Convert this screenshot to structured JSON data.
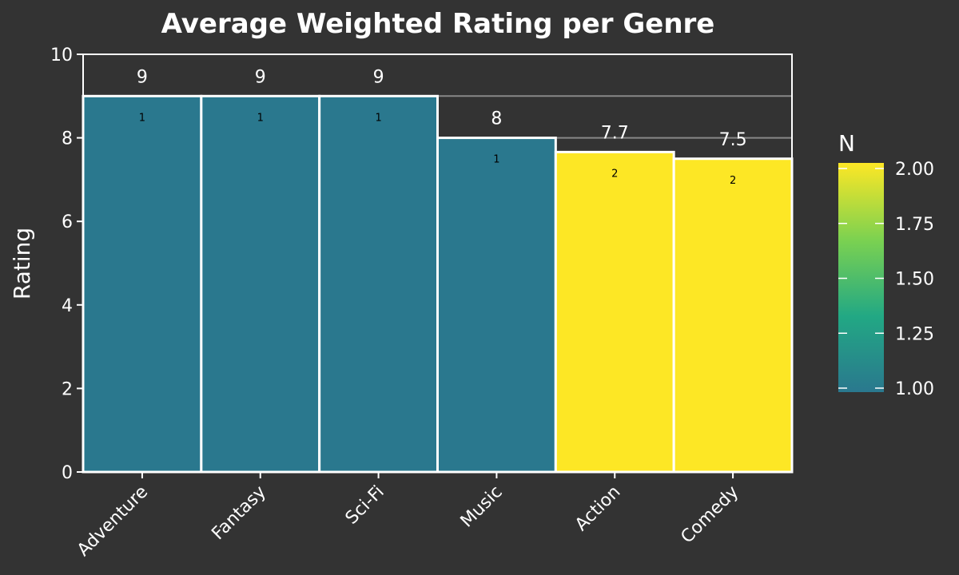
{
  "chart_data": {
    "type": "bar",
    "title": "Average Weighted Rating per Genre",
    "xlabel": "",
    "ylabel": "Rating",
    "ylim": [
      0,
      10
    ],
    "yticks": [
      0,
      2,
      4,
      6,
      8,
      10
    ],
    "categories": [
      "Adventure",
      "Fantasy",
      "Sci-Fi",
      "Music",
      "Action",
      "Comedy"
    ],
    "values": [
      9,
      9,
      9,
      8,
      7.66,
      7.5
    ],
    "value_labels": [
      "9",
      "9",
      "9",
      "8",
      "7.7",
      "7.5"
    ],
    "counts": [
      1,
      1,
      1,
      1,
      2,
      2
    ],
    "count_labels": [
      "1",
      "1",
      "1",
      "1",
      "2",
      "2"
    ],
    "reference_lines": [
      9,
      8
    ],
    "legend": {
      "title": "N",
      "position": "right",
      "range": [
        1.0,
        2.0
      ],
      "ticks": [
        1.0,
        1.25,
        1.5,
        1.75,
        2.0
      ],
      "tick_labels": [
        "1.00",
        "1.25",
        "1.50",
        "1.75",
        "2.00"
      ],
      "colors": [
        "#2a788e",
        "#22a884",
        "#7ad151",
        "#fde725"
      ]
    },
    "colors": {
      "background": "#333333",
      "text": "#ffffff",
      "bar_outline": "#ffffff",
      "reference_line": "#888888",
      "count_text": "#000000"
    }
  }
}
